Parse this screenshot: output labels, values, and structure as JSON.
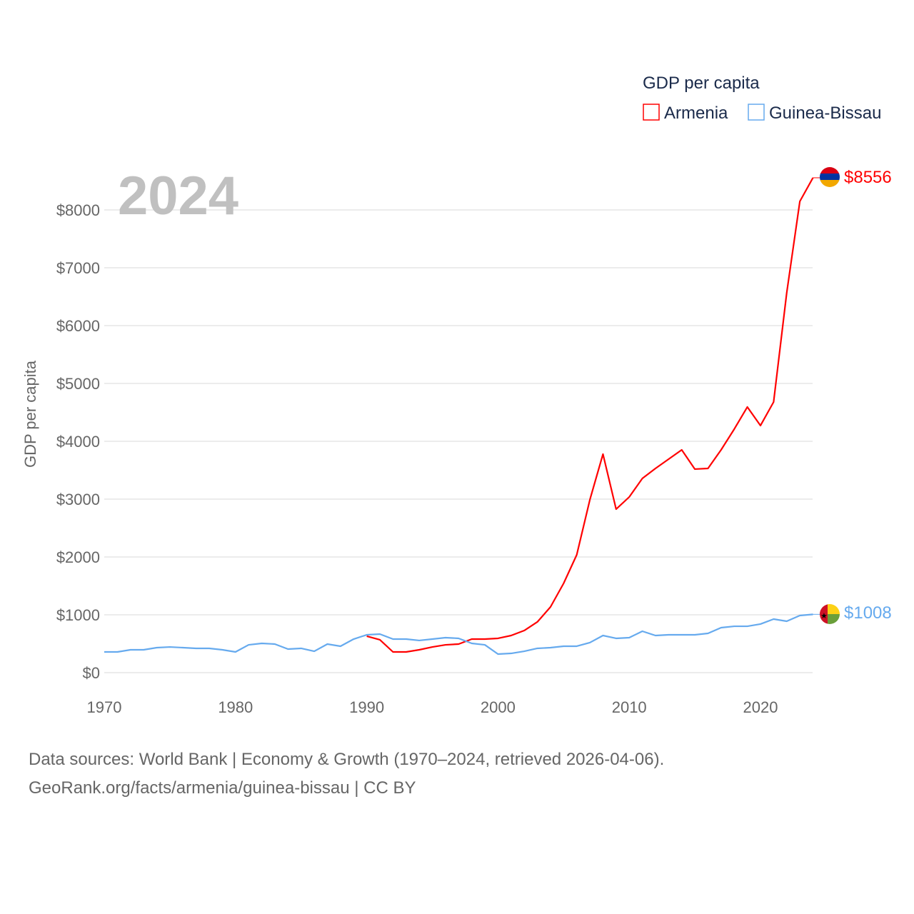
{
  "chart_data": {
    "type": "line",
    "title": "",
    "year_label": "2024",
    "legend_title": "GDP per capita",
    "legend_position": "top-right",
    "xlabel": "",
    "ylabel": "GDP per capita",
    "xlim": [
      1970,
      2024
    ],
    "ylim": [
      0,
      8600
    ],
    "x_ticks": [
      "1970",
      "1980",
      "1990",
      "2000",
      "2010",
      "2020"
    ],
    "y_ticks": [
      {
        "value": 0,
        "label": "$0"
      },
      {
        "value": 1000,
        "label": "$1000"
      },
      {
        "value": 2000,
        "label": "$2000"
      },
      {
        "value": 3000,
        "label": "$3000"
      },
      {
        "value": 4000,
        "label": "$4000"
      },
      {
        "value": 5000,
        "label": "$5000"
      },
      {
        "value": 6000,
        "label": "$6000"
      },
      {
        "value": 7000,
        "label": "$7000"
      },
      {
        "value": 8000,
        "label": "$8000"
      }
    ],
    "grid": true,
    "series": [
      {
        "name": "Armenia",
        "color": "#ff0000",
        "end_label": "$8556",
        "flag": "armenia-flag",
        "start_year": 1990,
        "values": [
          630,
          568,
          358,
          358,
          395,
          444,
          481,
          494,
          580,
          580,
          593,
          642,
          728,
          877,
          1136,
          1543,
          2037,
          2988,
          3778,
          2827,
          3037,
          3358,
          3531,
          3691,
          3852,
          3519,
          3531,
          3852,
          4210,
          4593,
          4272,
          4679,
          6568,
          8148,
          8556
        ]
      },
      {
        "name": "Guinea-Bissau",
        "color": "#66aaee",
        "end_label": "$1008",
        "flag": "guinea-bissau-flag",
        "start_year": 1970,
        "values": [
          358,
          358,
          395,
          395,
          432,
          444,
          432,
          420,
          420,
          395,
          358,
          481,
          506,
          494,
          407,
          420,
          370,
          494,
          457,
          580,
          654,
          667,
          580,
          580,
          556,
          580,
          605,
          593,
          506,
          481,
          321,
          333,
          370,
          420,
          432,
          457,
          457,
          519,
          642,
          593,
          605,
          716,
          642,
          654,
          654,
          654,
          679,
          778,
          802,
          802,
          840,
          926,
          889,
          988,
          1008
        ]
      }
    ]
  },
  "footer": {
    "line1": "Data sources: World Bank | Economy & Growth (1970–2024, retrieved 2026-04-06).",
    "line2": "GeoRank.org/facts/armenia/guinea-bissau | CC BY"
  }
}
